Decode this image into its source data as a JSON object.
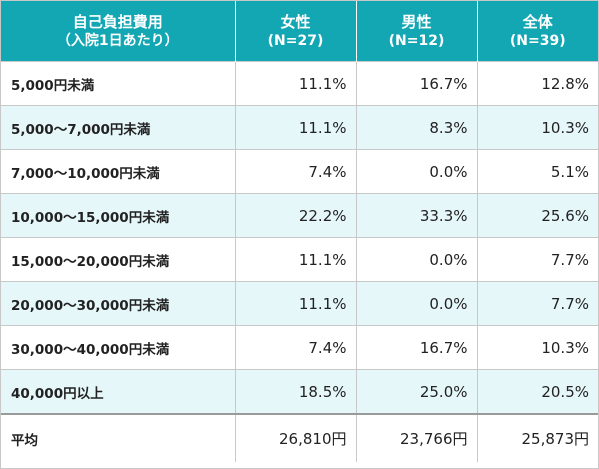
{
  "header": {
    "category_title": "自己負担費用",
    "category_subtitle": "（入院1日あたり）",
    "columns": [
      {
        "label": "女性",
        "n": "(N=27)"
      },
      {
        "label": "男性",
        "n": "(N=12)"
      },
      {
        "label": "全体",
        "n": "(N=39)"
      }
    ]
  },
  "chart_data": {
    "type": "table",
    "categories": [
      "5,000円未満",
      "5,000～7,000円未満",
      "7,000～10,000円未満",
      "10,000～15,000円未満",
      "15,000～20,000円未満",
      "20,000～30,000円未満",
      "30,000～40,000円未満",
      "40,000円以上"
    ],
    "series": [
      {
        "name": "女性",
        "values": [
          "11.1%",
          "11.1%",
          "7.4%",
          "22.2%",
          "11.1%",
          "11.1%",
          "7.4%",
          "18.5%"
        ]
      },
      {
        "name": "男性",
        "values": [
          "16.7%",
          "8.3%",
          "0.0%",
          "33.3%",
          "0.0%",
          "0.0%",
          "16.7%",
          "25.0%"
        ]
      },
      {
        "name": "全体",
        "values": [
          "12.8%",
          "10.3%",
          "5.1%",
          "25.6%",
          "7.7%",
          "7.7%",
          "10.3%",
          "20.5%"
        ]
      }
    ],
    "average": {
      "label": "平均",
      "values": [
        "26,810円",
        "23,766円",
        "25,873円"
      ]
    }
  },
  "colors": {
    "header_bg": "#13a6b3",
    "header_text": "#ffffff",
    "alt_row_bg": "#e6f7fa",
    "border": "#c8c8c8"
  }
}
